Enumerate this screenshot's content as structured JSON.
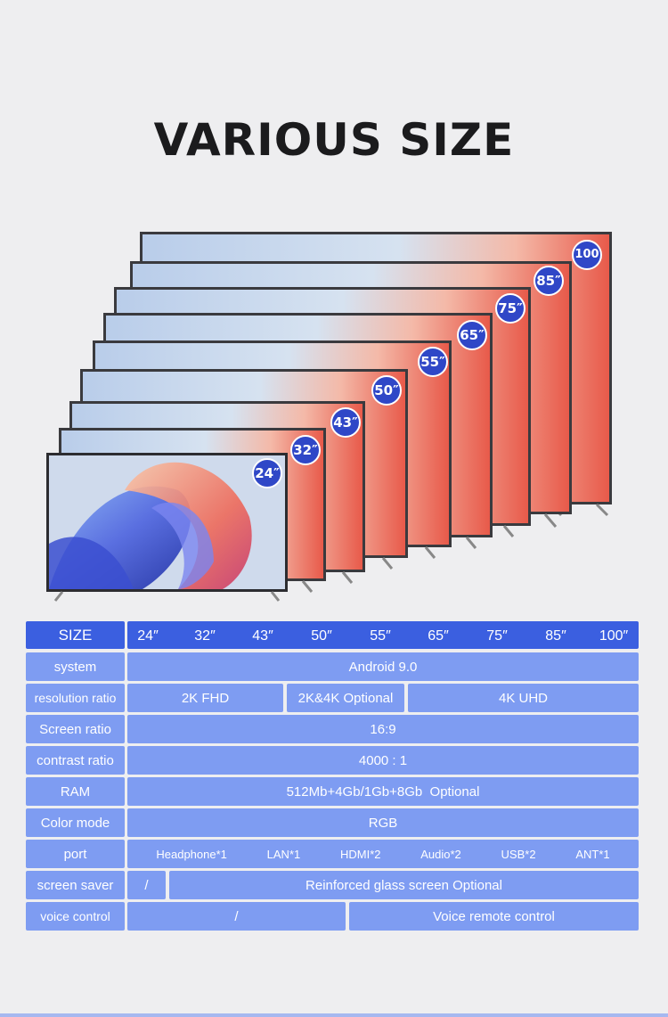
{
  "title": "VARIOUS SIZE",
  "badges": [
    "24″",
    "32″",
    "43″",
    "50″",
    "55″",
    "65″",
    "75″",
    "85″",
    "100"
  ],
  "table": {
    "size_label": "SIZE",
    "sizes": [
      "24″",
      "32″",
      "43″",
      "50″",
      "55″",
      "65″",
      "75″",
      "85″",
      "100″"
    ],
    "rows": {
      "system": {
        "label": "system",
        "value": "Android 9.0"
      },
      "resolution": {
        "label": "resolution ratio",
        "values": [
          "2K FHD",
          "2K&4K Optional",
          "4K UHD"
        ]
      },
      "screen_ratio": {
        "label": "Screen ratio",
        "value": "16:9"
      },
      "contrast": {
        "label": "contrast ratio",
        "value": "4000 : 1"
      },
      "ram": {
        "label": "RAM",
        "value": "512Mb+4Gb/1Gb+8Gb  Optional"
      },
      "color_mode": {
        "label": "Color mode",
        "value": "RGB"
      },
      "port": {
        "label": "port",
        "values": [
          "Headphone*1",
          "LAN*1",
          "HDMI*2",
          "Audio*2",
          "USB*2",
          "ANT*1"
        ]
      },
      "screen_saver": {
        "label": "screen saver",
        "values": [
          "/",
          "Reinforced glass screen Optional"
        ]
      },
      "voice_control": {
        "label": "voice control",
        "values": [
          "/",
          "Voice remote control"
        ]
      }
    }
  },
  "colors": {
    "header": "#3b5fe0",
    "cell": "#7e9cf2",
    "badge": "#2f47c7",
    "background": "#eeeef0"
  }
}
